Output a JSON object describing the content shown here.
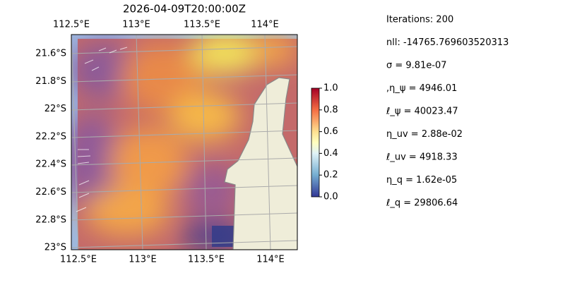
{
  "title": "2026-04-09T20:00:00Z",
  "map": {
    "top_lon_labels": [
      "112.5°E",
      "113°E",
      "113.5°E",
      "114°E"
    ],
    "bottom_lon_labels": [
      "112.5°E",
      "113°E",
      "113.5°E",
      "114°E"
    ],
    "lat_labels": [
      "21.6°S",
      "21.8°S",
      "22°S",
      "22.2°S",
      "22.4°S",
      "22.6°S",
      "22.8°S",
      "23°S"
    ]
  },
  "colorbar": {
    "ylim": [
      0,
      1
    ],
    "yticks": [
      {
        "value": 0,
        "label": "0.0"
      },
      {
        "value": 0.2,
        "label": "0.2"
      },
      {
        "value": 0.4,
        "label": "0.4"
      },
      {
        "value": 0.6,
        "label": "0.6"
      },
      {
        "value": 0.8,
        "label": "0.8"
      },
      {
        "value": 1,
        "label": "1.0"
      }
    ]
  },
  "stats": [
    "Iterations: 200",
    "nll: -14765.769603520313",
    "σ = 9.81e-07",
    ",η_ψ = 4946.01",
    "ℓ_ψ = 40023.47",
    "η_uv = 2.88e-02",
    "ℓ_uv = 4918.33",
    "η_q = 1.62e-05",
    "ℓ_q = 29806.64"
  ]
}
